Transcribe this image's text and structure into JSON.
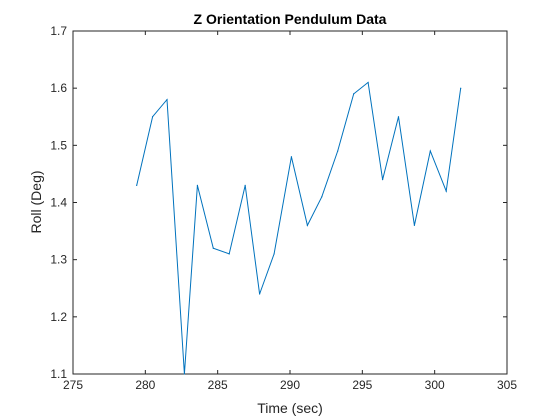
{
  "chart_data": {
    "type": "line",
    "title": "Z Orientation Pendulum Data",
    "xlabel": "Time (sec)",
    "ylabel": "Roll (Deg)",
    "xlim": [
      275,
      305
    ],
    "ylim": [
      1.1,
      1.7
    ],
    "xticks": [
      275,
      280,
      285,
      290,
      295,
      300,
      305
    ],
    "yticks": [
      1.1,
      1.2,
      1.3,
      1.4,
      1.5,
      1.6,
      1.7
    ],
    "grid": false,
    "series": [
      {
        "color": "#0072bd",
        "x": [
          279.4,
          280.5,
          281.5,
          282.7,
          283.6,
          284.7,
          285.8,
          286.9,
          287.9,
          288.9,
          290.1,
          291.2,
          292.2,
          293.3,
          294.4,
          295.4,
          296.4,
          297.5,
          298.6,
          299.7,
          300.8,
          301.8
        ],
        "y": [
          1.43,
          1.55,
          1.58,
          1.1,
          1.43,
          1.32,
          1.31,
          1.43,
          1.24,
          1.31,
          1.48,
          1.36,
          1.41,
          1.49,
          1.59,
          1.61,
          1.44,
          1.55,
          1.36,
          1.49,
          1.42,
          1.6
        ]
      }
    ]
  }
}
